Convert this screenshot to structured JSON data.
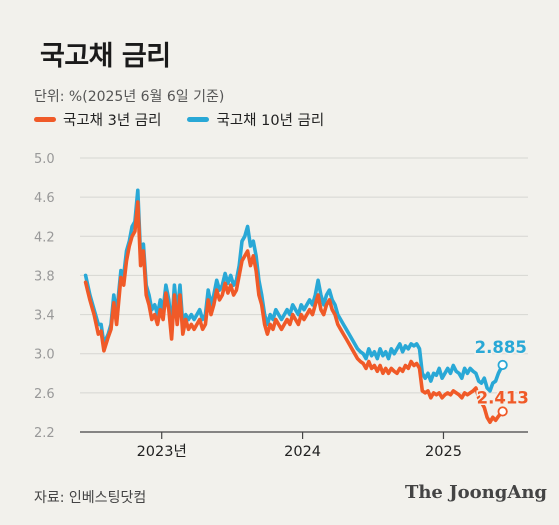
{
  "title": "국고채 금리",
  "unit_note": "단위: %(2025년 6월 6일 기준)",
  "source": "자료: 인베스팅닷컴",
  "brand": "The JoongAng",
  "colors": {
    "series3y": "#f05a28",
    "series10y": "#29a8d6",
    "grid": "#d6d6d2",
    "axis": "#444444",
    "tick": "#999999"
  },
  "chart_data": {
    "type": "line",
    "ylim": [
      2.2,
      5.0
    ],
    "yticks": [
      "5.0",
      "4.6",
      "4.2",
      "3.8",
      "3.4",
      "3.0",
      "2.6",
      "2.2"
    ],
    "xlim": [
      2022.42,
      2025.6
    ],
    "xticks": [
      {
        "value": 2023.0,
        "label": "2023년"
      },
      {
        "value": 2024.0,
        "label": "2024"
      },
      {
        "value": 2025.0,
        "label": "2025"
      }
    ],
    "grid": true,
    "legend": "top-left",
    "series": [
      {
        "name": "국고채 3년 금리",
        "end_label": "2.413",
        "points": [
          [
            2022.46,
            3.73
          ],
          [
            2022.49,
            3.55
          ],
          [
            2022.52,
            3.4
          ],
          [
            2022.55,
            3.2
          ],
          [
            2022.57,
            3.23
          ],
          [
            2022.59,
            3.03
          ],
          [
            2022.62,
            3.17
          ],
          [
            2022.64,
            3.25
          ],
          [
            2022.66,
            3.52
          ],
          [
            2022.68,
            3.3
          ],
          [
            2022.71,
            3.78
          ],
          [
            2022.73,
            3.7
          ],
          [
            2022.75,
            3.95
          ],
          [
            2022.77,
            4.1
          ],
          [
            2022.79,
            4.2
          ],
          [
            2022.81,
            4.25
          ],
          [
            2022.83,
            4.55
          ],
          [
            2022.85,
            3.9
          ],
          [
            2022.87,
            4.05
          ],
          [
            2022.89,
            3.6
          ],
          [
            2022.91,
            3.5
          ],
          [
            2022.93,
            3.35
          ],
          [
            2022.95,
            3.4
          ],
          [
            2022.97,
            3.3
          ],
          [
            2022.99,
            3.45
          ],
          [
            2023.01,
            3.35
          ],
          [
            2023.03,
            3.62
          ],
          [
            2023.05,
            3.45
          ],
          [
            2023.07,
            3.15
          ],
          [
            2023.09,
            3.6
          ],
          [
            2023.11,
            3.3
          ],
          [
            2023.13,
            3.6
          ],
          [
            2023.15,
            3.2
          ],
          [
            2023.17,
            3.35
          ],
          [
            2023.19,
            3.25
          ],
          [
            2023.21,
            3.3
          ],
          [
            2023.23,
            3.25
          ],
          [
            2023.25,
            3.3
          ],
          [
            2023.27,
            3.35
          ],
          [
            2023.29,
            3.25
          ],
          [
            2023.31,
            3.3
          ],
          [
            2023.33,
            3.55
          ],
          [
            2023.35,
            3.4
          ],
          [
            2023.37,
            3.5
          ],
          [
            2023.39,
            3.65
          ],
          [
            2023.41,
            3.55
          ],
          [
            2023.43,
            3.6
          ],
          [
            2023.45,
            3.72
          ],
          [
            2023.47,
            3.62
          ],
          [
            2023.49,
            3.7
          ],
          [
            2023.51,
            3.6
          ],
          [
            2023.53,
            3.65
          ],
          [
            2023.55,
            3.8
          ],
          [
            2023.57,
            3.95
          ],
          [
            2023.59,
            4.0
          ],
          [
            2023.61,
            4.05
          ],
          [
            2023.63,
            3.9
          ],
          [
            2023.65,
            4.0
          ],
          [
            2023.67,
            3.85
          ],
          [
            2023.69,
            3.6
          ],
          [
            2023.71,
            3.5
          ],
          [
            2023.73,
            3.3
          ],
          [
            2023.75,
            3.2
          ],
          [
            2023.77,
            3.3
          ],
          [
            2023.79,
            3.25
          ],
          [
            2023.81,
            3.35
          ],
          [
            2023.83,
            3.3
          ],
          [
            2023.85,
            3.25
          ],
          [
            2023.87,
            3.3
          ],
          [
            2023.89,
            3.35
          ],
          [
            2023.91,
            3.3
          ],
          [
            2023.93,
            3.4
          ],
          [
            2023.95,
            3.35
          ],
          [
            2023.97,
            3.3
          ],
          [
            2023.99,
            3.4
          ],
          [
            2024.01,
            3.35
          ],
          [
            2024.03,
            3.4
          ],
          [
            2024.05,
            3.45
          ],
          [
            2024.07,
            3.4
          ],
          [
            2024.09,
            3.5
          ],
          [
            2024.11,
            3.6
          ],
          [
            2024.13,
            3.45
          ],
          [
            2024.15,
            3.4
          ],
          [
            2024.17,
            3.5
          ],
          [
            2024.19,
            3.55
          ],
          [
            2024.21,
            3.45
          ],
          [
            2024.23,
            3.4
          ],
          [
            2024.25,
            3.3
          ],
          [
            2024.27,
            3.25
          ],
          [
            2024.29,
            3.2
          ],
          [
            2024.31,
            3.15
          ],
          [
            2024.33,
            3.1
          ],
          [
            2024.35,
            3.05
          ],
          [
            2024.37,
            3.0
          ],
          [
            2024.39,
            2.95
          ],
          [
            2024.41,
            2.92
          ],
          [
            2024.43,
            2.9
          ],
          [
            2024.45,
            2.85
          ],
          [
            2024.47,
            2.92
          ],
          [
            2024.49,
            2.85
          ],
          [
            2024.51,
            2.88
          ],
          [
            2024.53,
            2.82
          ],
          [
            2024.55,
            2.88
          ],
          [
            2024.57,
            2.8
          ],
          [
            2024.59,
            2.85
          ],
          [
            2024.61,
            2.8
          ],
          [
            2024.63,
            2.85
          ],
          [
            2024.65,
            2.82
          ],
          [
            2024.67,
            2.8
          ],
          [
            2024.69,
            2.85
          ],
          [
            2024.71,
            2.82
          ],
          [
            2024.73,
            2.88
          ],
          [
            2024.75,
            2.85
          ],
          [
            2024.77,
            2.92
          ],
          [
            2024.79,
            2.88
          ],
          [
            2024.81,
            2.9
          ],
          [
            2024.83,
            2.85
          ],
          [
            2024.85,
            2.62
          ],
          [
            2024.87,
            2.6
          ],
          [
            2024.89,
            2.62
          ],
          [
            2024.91,
            2.55
          ],
          [
            2024.93,
            2.6
          ],
          [
            2024.95,
            2.58
          ],
          [
            2024.97,
            2.6
          ],
          [
            2024.99,
            2.55
          ],
          [
            2025.01,
            2.58
          ],
          [
            2025.03,
            2.6
          ],
          [
            2025.05,
            2.58
          ],
          [
            2025.07,
            2.62
          ],
          [
            2025.09,
            2.6
          ],
          [
            2025.11,
            2.58
          ],
          [
            2025.13,
            2.55
          ],
          [
            2025.15,
            2.6
          ],
          [
            2025.17,
            2.58
          ],
          [
            2025.19,
            2.6
          ],
          [
            2025.21,
            2.62
          ],
          [
            2025.23,
            2.65
          ],
          [
            2025.25,
            2.55
          ],
          [
            2025.27,
            2.5
          ],
          [
            2025.29,
            2.45
          ],
          [
            2025.31,
            2.35
          ],
          [
            2025.33,
            2.3
          ],
          [
            2025.35,
            2.35
          ],
          [
            2025.37,
            2.32
          ],
          [
            2025.39,
            2.36
          ],
          [
            2025.42,
            2.41
          ]
        ]
      },
      {
        "name": "국고채 10년 금리",
        "end_label": "2.885",
        "points": [
          [
            2022.46,
            3.8
          ],
          [
            2022.49,
            3.6
          ],
          [
            2022.52,
            3.45
          ],
          [
            2022.55,
            3.3
          ],
          [
            2022.57,
            3.3
          ],
          [
            2022.59,
            3.1
          ],
          [
            2022.62,
            3.2
          ],
          [
            2022.64,
            3.3
          ],
          [
            2022.66,
            3.6
          ],
          [
            2022.68,
            3.4
          ],
          [
            2022.71,
            3.85
          ],
          [
            2022.73,
            3.8
          ],
          [
            2022.75,
            4.05
          ],
          [
            2022.77,
            4.15
          ],
          [
            2022.79,
            4.3
          ],
          [
            2022.81,
            4.35
          ],
          [
            2022.83,
            4.67
          ],
          [
            2022.85,
            4.0
          ],
          [
            2022.87,
            4.12
          ],
          [
            2022.89,
            3.7
          ],
          [
            2022.91,
            3.6
          ],
          [
            2022.93,
            3.45
          ],
          [
            2022.95,
            3.5
          ],
          [
            2022.97,
            3.4
          ],
          [
            2022.99,
            3.55
          ],
          [
            2023.01,
            3.45
          ],
          [
            2023.03,
            3.7
          ],
          [
            2023.05,
            3.55
          ],
          [
            2023.07,
            3.25
          ],
          [
            2023.09,
            3.7
          ],
          [
            2023.11,
            3.4
          ],
          [
            2023.13,
            3.7
          ],
          [
            2023.15,
            3.3
          ],
          [
            2023.17,
            3.4
          ],
          [
            2023.19,
            3.35
          ],
          [
            2023.21,
            3.4
          ],
          [
            2023.23,
            3.35
          ],
          [
            2023.25,
            3.4
          ],
          [
            2023.27,
            3.45
          ],
          [
            2023.29,
            3.35
          ],
          [
            2023.31,
            3.4
          ],
          [
            2023.33,
            3.65
          ],
          [
            2023.35,
            3.5
          ],
          [
            2023.37,
            3.6
          ],
          [
            2023.39,
            3.75
          ],
          [
            2023.41,
            3.65
          ],
          [
            2023.43,
            3.7
          ],
          [
            2023.45,
            3.82
          ],
          [
            2023.47,
            3.72
          ],
          [
            2023.49,
            3.8
          ],
          [
            2023.51,
            3.7
          ],
          [
            2023.53,
            3.75
          ],
          [
            2023.55,
            3.9
          ],
          [
            2023.57,
            4.15
          ],
          [
            2023.59,
            4.2
          ],
          [
            2023.61,
            4.3
          ],
          [
            2023.63,
            4.1
          ],
          [
            2023.65,
            4.15
          ],
          [
            2023.67,
            4.0
          ],
          [
            2023.69,
            3.75
          ],
          [
            2023.71,
            3.6
          ],
          [
            2023.73,
            3.4
          ],
          [
            2023.75,
            3.3
          ],
          [
            2023.77,
            3.4
          ],
          [
            2023.79,
            3.35
          ],
          [
            2023.81,
            3.45
          ],
          [
            2023.83,
            3.4
          ],
          [
            2023.85,
            3.35
          ],
          [
            2023.87,
            3.4
          ],
          [
            2023.89,
            3.45
          ],
          [
            2023.91,
            3.4
          ],
          [
            2023.93,
            3.5
          ],
          [
            2023.95,
            3.45
          ],
          [
            2023.97,
            3.4
          ],
          [
            2023.99,
            3.5
          ],
          [
            2024.01,
            3.45
          ],
          [
            2024.03,
            3.5
          ],
          [
            2024.05,
            3.55
          ],
          [
            2024.07,
            3.5
          ],
          [
            2024.09,
            3.6
          ],
          [
            2024.11,
            3.75
          ],
          [
            2024.13,
            3.6
          ],
          [
            2024.15,
            3.5
          ],
          [
            2024.17,
            3.6
          ],
          [
            2024.19,
            3.65
          ],
          [
            2024.21,
            3.55
          ],
          [
            2024.23,
            3.5
          ],
          [
            2024.25,
            3.4
          ],
          [
            2024.27,
            3.35
          ],
          [
            2024.29,
            3.3
          ],
          [
            2024.31,
            3.25
          ],
          [
            2024.33,
            3.2
          ],
          [
            2024.35,
            3.15
          ],
          [
            2024.37,
            3.1
          ],
          [
            2024.39,
            3.05
          ],
          [
            2024.41,
            3.02
          ],
          [
            2024.43,
            3.0
          ],
          [
            2024.45,
            2.95
          ],
          [
            2024.47,
            3.05
          ],
          [
            2024.49,
            2.98
          ],
          [
            2024.51,
            3.02
          ],
          [
            2024.53,
            2.95
          ],
          [
            2024.55,
            3.05
          ],
          [
            2024.57,
            2.98
          ],
          [
            2024.59,
            3.02
          ],
          [
            2024.61,
            2.95
          ],
          [
            2024.63,
            3.05
          ],
          [
            2024.65,
            3.0
          ],
          [
            2024.67,
            3.05
          ],
          [
            2024.69,
            3.1
          ],
          [
            2024.71,
            3.02
          ],
          [
            2024.73,
            3.08
          ],
          [
            2024.75,
            3.05
          ],
          [
            2024.77,
            3.1
          ],
          [
            2024.79,
            3.08
          ],
          [
            2024.81,
            3.1
          ],
          [
            2024.83,
            3.05
          ],
          [
            2024.85,
            2.8
          ],
          [
            2024.87,
            2.75
          ],
          [
            2024.89,
            2.8
          ],
          [
            2024.91,
            2.72
          ],
          [
            2024.93,
            2.8
          ],
          [
            2024.95,
            2.78
          ],
          [
            2024.97,
            2.85
          ],
          [
            2024.99,
            2.75
          ],
          [
            2025.01,
            2.8
          ],
          [
            2025.03,
            2.85
          ],
          [
            2025.05,
            2.8
          ],
          [
            2025.07,
            2.88
          ],
          [
            2025.09,
            2.82
          ],
          [
            2025.11,
            2.8
          ],
          [
            2025.13,
            2.75
          ],
          [
            2025.15,
            2.85
          ],
          [
            2025.17,
            2.8
          ],
          [
            2025.19,
            2.85
          ],
          [
            2025.21,
            2.82
          ],
          [
            2025.23,
            2.8
          ],
          [
            2025.25,
            2.72
          ],
          [
            2025.27,
            2.7
          ],
          [
            2025.29,
            2.75
          ],
          [
            2025.31,
            2.65
          ],
          [
            2025.33,
            2.62
          ],
          [
            2025.35,
            2.7
          ],
          [
            2025.37,
            2.72
          ],
          [
            2025.39,
            2.8
          ],
          [
            2025.42,
            2.885
          ]
        ]
      }
    ]
  }
}
